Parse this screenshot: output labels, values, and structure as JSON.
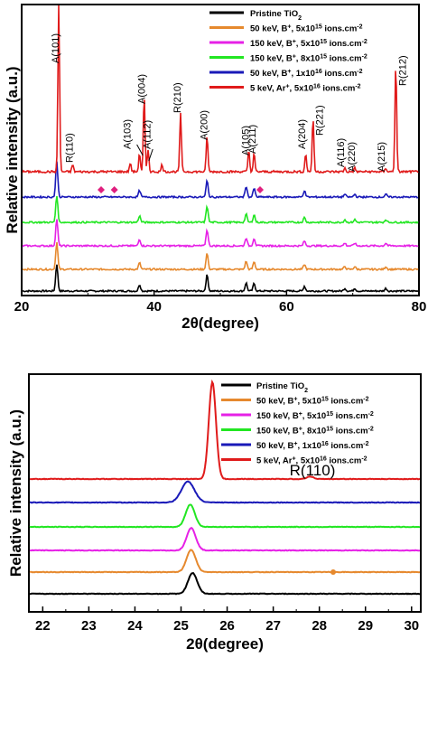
{
  "chart_data": [
    {
      "type": "line",
      "panel": "top",
      "xlabel": "2θ(degree)",
      "ylabel": "Relative intensity (a.u.)",
      "xlim": [
        20,
        80
      ],
      "xticks": [
        "20",
        "40",
        "60",
        "80"
      ],
      "legend_position": "top-right",
      "series": [
        {
          "name": "Pristine TiO2",
          "color": "#000000",
          "offset": 0.0,
          "x": [
            20,
            25.3,
            37.8,
            48.0,
            53.9,
            55.1,
            62.7,
            68.8,
            70.3,
            75.0,
            80
          ],
          "y": [
            0,
            0.5,
            0.12,
            0.3,
            0.15,
            0.14,
            0.09,
            0.05,
            0.05,
            0.05,
            0
          ]
        },
        {
          "name": "50 keV, B+, 5x10^15 ions.cm-2",
          "color": "#E6892E",
          "offset": 0.09,
          "x": [
            20,
            25.3,
            37.8,
            48.0,
            53.9,
            55.1,
            62.7,
            68.8,
            70.3,
            75.0,
            80
          ],
          "y": [
            0,
            0.5,
            0.12,
            0.3,
            0.15,
            0.14,
            0.09,
            0.05,
            0.05,
            0.05,
            0
          ]
        },
        {
          "name": "150 keV, B+, 5x10^15 ions.cm-2",
          "color": "#E620E6",
          "offset": 0.18,
          "x": [
            20,
            25.3,
            37.8,
            48.0,
            53.9,
            55.1,
            62.7,
            68.8,
            70.3,
            75.0,
            80
          ],
          "y": [
            0,
            0.5,
            0.12,
            0.3,
            0.15,
            0.14,
            0.09,
            0.05,
            0.05,
            0.05,
            0
          ]
        },
        {
          "name": "150 keV, B+, 8x10^15 ions.cm-2",
          "color": "#22E622",
          "offset": 0.27,
          "x": [
            20,
            25.3,
            37.8,
            48.0,
            53.9,
            55.1,
            62.7,
            68.8,
            70.3,
            75.0,
            80
          ],
          "y": [
            0,
            0.5,
            0.12,
            0.3,
            0.15,
            0.14,
            0.09,
            0.05,
            0.05,
            0.05,
            0
          ]
        },
        {
          "name": "50 keV, B+, 1x10^16 ions.cm-2",
          "color": "#1A1AB8",
          "offset": 0.36,
          "x": [
            20,
            25.3,
            37.8,
            48.0,
            53.9,
            55.1,
            62.7,
            68.8,
            70.3,
            75.0,
            80
          ],
          "y": [
            0,
            0.65,
            0.12,
            0.3,
            0.2,
            0.16,
            0.12,
            0.05,
            0.05,
            0.05,
            0
          ]
        },
        {
          "name": "5 keV, Ar+, 5x10^16 ions.cm-2",
          "color": "#E01B1B",
          "offset": 0.48,
          "x": [
            20,
            25.6,
            27.7,
            36.4,
            37.8,
            38.5,
            39.1,
            41.2,
            44.0,
            48.0,
            54.3,
            55.1,
            62.9,
            64.0,
            68.8,
            70.3,
            75.0,
            76.5,
            80
          ],
          "y": [
            0,
            2.3,
            0.1,
            0.12,
            0.25,
            1.05,
            0.3,
            0.1,
            0.8,
            0.5,
            0.3,
            0.25,
            0.25,
            0.75,
            0.05,
            0.05,
            0.05,
            1.5,
            0
          ]
        }
      ],
      "annotations": [
        "A(101)",
        "R(110)",
        "A(103)",
        "A(004)",
        "A(112)",
        "R(210)",
        "A(200)",
        "A(105)",
        "A(211)",
        "A(204)",
        "R(221)",
        "A(116)",
        "A(220)",
        "A(215)",
        "R(212)"
      ],
      "markers": {
        "symbol": "diamond",
        "color": "#E0207F",
        "x": [
          32.0,
          34.0,
          56.0
        ]
      }
    },
    {
      "type": "line",
      "panel": "bottom",
      "xlabel": "2θ(degree)",
      "ylabel": "Relative intensity (a.u.)",
      "xlim": [
        21.7,
        30.2
      ],
      "xticks": [
        "22",
        "23",
        "24",
        "25",
        "26",
        "27",
        "28",
        "29",
        "30"
      ],
      "legend_position": "top-right",
      "series": [
        {
          "name": "Pristine TiO2",
          "color": "#000000",
          "offset": 0.0,
          "peak_x": 25.25,
          "peak_height": 0.42
        },
        {
          "name": "50 keV, B+, 5x10^15 ions.cm-2",
          "color": "#E6892E",
          "offset": 0.1,
          "peak_x": 25.22,
          "peak_height": 0.45
        },
        {
          "name": "150 keV, B+, 5x10^15 ions.cm-2",
          "color": "#E620E6",
          "offset": 0.2,
          "peak_x": 25.22,
          "peak_height": 0.45
        },
        {
          "name": "150 keV, B+, 8x10^15 ions.cm-2",
          "color": "#22E622",
          "offset": 0.3,
          "peak_x": 25.2,
          "peak_height": 0.45
        },
        {
          "name": "50 keV, B+, 1x10^16 ions.cm-2",
          "color": "#1A1AB8",
          "offset": 0.4,
          "peak_x": 25.15,
          "peak_height": 0.42
        },
        {
          "name": "5 keV, Ar+, 5x10^16 ions.cm-2",
          "color": "#E01B1B",
          "offset": 0.5,
          "peak_x": 25.68,
          "peak_height": 1.95
        }
      ],
      "annotations": [
        "R(110)"
      ]
    }
  ]
}
